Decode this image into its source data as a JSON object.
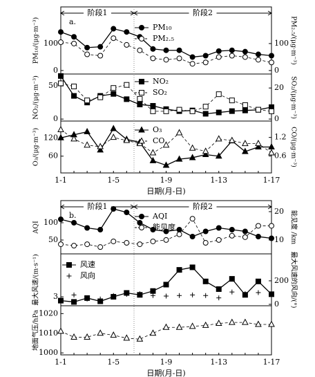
{
  "chart_data": [
    {
      "type": "line",
      "panel_tag": "a.",
      "stages": [
        "阶段1",
        "阶段2"
      ],
      "y_label": "PM₁₀/(μg·m⁻³)",
      "y2_label": "PM₂.₅/(μg·m⁻³)",
      "ylim": [
        -13,
        236
      ],
      "yticks": [
        0,
        100
      ],
      "y2lim": [
        -13,
        236
      ],
      "y2ticks": [
        0,
        100
      ],
      "series": [
        {
          "name": "PM₁₀",
          "marker": "circle-filled",
          "dash": false,
          "axis": "y",
          "values": [
            143,
            125,
            85,
            88,
            155,
            143,
            125,
            80,
            75,
            75,
            50,
            55,
            72,
            75,
            70,
            60,
            55
          ]
        },
        {
          "name": "PM₂.₅",
          "marker": "circle-open",
          "dash": true,
          "axis": "y2",
          "values": [
            105,
            100,
            60,
            55,
            120,
            95,
            75,
            45,
            40,
            45,
            25,
            30,
            50,
            55,
            50,
            40,
            30
          ]
        }
      ]
    },
    {
      "type": "line",
      "y_label": "NO₂/(μg·m⁻³)",
      "y2_label": "SO₂/(μg·m⁻³)",
      "ylim": [
        -3,
        68
      ],
      "yticks": [
        0,
        50
      ],
      "y2lim": [
        -1.3,
        29
      ],
      "y2ticks": [
        0,
        20
      ],
      "series": [
        {
          "name": "NO₂",
          "marker": "square-filled",
          "dash": false,
          "axis": "y",
          "values": [
            65,
            35,
            25,
            35,
            38,
            30,
            22,
            20,
            15,
            12,
            13,
            8,
            10,
            12,
            13,
            14,
            18
          ]
        },
        {
          "name": "SO₂",
          "marker": "square-open",
          "dash": true,
          "axis": "y2",
          "values": [
            23,
            21,
            12,
            14,
            20,
            22,
            13,
            5,
            5,
            6,
            5,
            8,
            16,
            12,
            9,
            6,
            5
          ]
        }
      ]
    },
    {
      "type": "line",
      "y_label": "O₃/(μg·m⁻³)",
      "y2_label": "CO/(μg·m⁻³)",
      "ylim": [
        5,
        175
      ],
      "yticks": [
        60,
        120
      ],
      "y2lim": [
        0.05,
        1.73
      ],
      "y2ticks": [
        0.6,
        1.2
      ],
      "categories": [
        "1-1",
        null,
        null,
        null,
        "1-5",
        null,
        null,
        null,
        "1-9",
        null,
        null,
        null,
        "1-13",
        null,
        null,
        null,
        "1-17"
      ],
      "x_label": "日期(月-日)",
      "series": [
        {
          "name": "O₃",
          "marker": "triangle-filled",
          "dash": false,
          "axis": "y",
          "values": [
            120,
            130,
            140,
            80,
            150,
            115,
            105,
            45,
            30,
            50,
            55,
            65,
            60,
            110,
            75,
            90,
            90
          ]
        },
        {
          "name": "CO",
          "marker": "triangle-open",
          "dash": true,
          "axis": "y2",
          "values": [
            1.45,
            1.15,
            0.95,
            0.9,
            1.2,
            1.1,
            1.0,
            0.7,
            0.95,
            1.35,
            0.85,
            0.75,
            1.15,
            1.1,
            1.0,
            1.0,
            0.7
          ]
        }
      ]
    },
    {
      "type": "line",
      "panel_tag": "b.",
      "stages": [
        "阶段1",
        "阶段2"
      ],
      "y_label": "AQI",
      "y2_label": "能见度 /km",
      "ylim": [
        10,
        164
      ],
      "yticks": [
        50,
        100
      ],
      "y2lim": [
        5.1,
        23.9
      ],
      "y2ticks": [
        10,
        20
      ],
      "series": [
        {
          "name": "AQI",
          "marker": "circle-filled",
          "dash": false,
          "axis": "y",
          "values": [
            110,
            100,
            85,
            80,
            140,
            130,
            100,
            80,
            75,
            80,
            60,
            75,
            85,
            80,
            75,
            60,
            55
          ]
        },
        {
          "name": "能见度",
          "marker": "circle-open",
          "dash": true,
          "axis": "y2",
          "values": [
            8.5,
            8,
            8.5,
            7.5,
            9.5,
            9,
            8.5,
            9.5,
            10,
            12,
            17.5,
            9,
            10,
            11.5,
            11,
            15,
            15
          ]
        }
      ]
    },
    {
      "type": "line",
      "y_label": "最大风速/(m·s⁻¹)",
      "y2_label": "最大风速的风向/(°)",
      "ylim": [
        1.6,
        9.7
      ],
      "yticks": [
        3
      ],
      "y2lim": [
        -12,
        429
      ],
      "y2ticks": [
        0,
        200
      ],
      "series": [
        {
          "name": "风速",
          "marker": "square-filled",
          "dash": false,
          "axis": "y",
          "values": [
            2.4,
            2.2,
            2.8,
            2.3,
            3.0,
            3.6,
            3.3,
            3.9,
            4.9,
            7.2,
            7.6,
            5.4,
            4.2,
            5.8,
            3.3,
            5.4,
            3.4
          ]
        },
        {
          "name": "风向",
          "marker": "plus",
          "line": false,
          "axis": "y2",
          "values": [
            40,
            80,
            45,
            45,
            75,
            85,
            90,
            75,
            70,
            75,
            80,
            75,
            55,
            105,
            90,
            100,
            70
          ]
        }
      ]
    },
    {
      "type": "line",
      "y_label": "地面气压/hPa",
      "ylim": [
        999,
        1024
      ],
      "yticks": [
        1000,
        1010,
        1020
      ],
      "categories": [
        "1-1",
        null,
        null,
        null,
        "1-5",
        null,
        null,
        null,
        "1-9",
        null,
        null,
        null,
        "1-13",
        null,
        null,
        null,
        "1-17"
      ],
      "x_label": "日期(月-日)",
      "series": [
        {
          "marker": "triangle-open",
          "dash": true,
          "axis": "y",
          "values": [
            1011,
            1008,
            1008,
            1010,
            1009,
            1007.5,
            1007,
            1010,
            1013,
            1013,
            1013.5,
            1014,
            1015,
            1015.5,
            1015.5,
            1014.5,
            1014.5
          ]
        }
      ]
    }
  ]
}
